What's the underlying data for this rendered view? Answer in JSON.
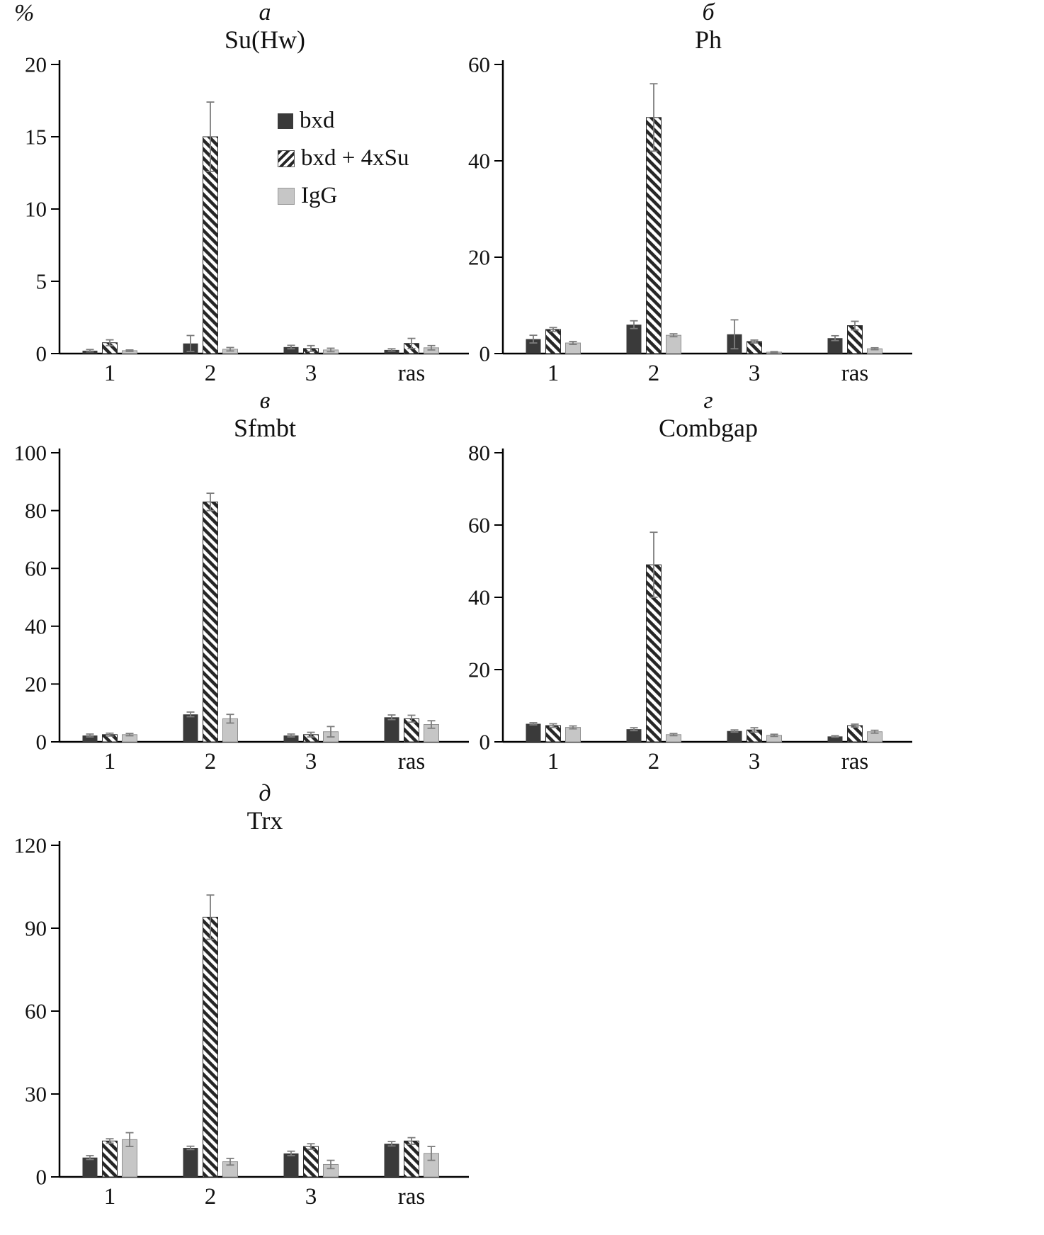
{
  "legend": {
    "items": [
      {
        "label": "bxd",
        "style": "solid-dark"
      },
      {
        "label": "bxd + 4xSu",
        "style": "hatched"
      },
      {
        "label": "IgG",
        "style": "solid-light"
      }
    ]
  },
  "chart_data": [
    {
      "type": "bar",
      "panel_letter": "а",
      "title": "Su(Hw)",
      "ylabel": "%",
      "ylim": [
        0,
        20
      ],
      "yticks": [
        0,
        5,
        10,
        15,
        20
      ],
      "categories": [
        "1",
        "2",
        "3",
        "ras"
      ],
      "grid": false,
      "legend_position": "inside-right",
      "series": [
        {
          "name": "bxd",
          "values": [
            0.2,
            0.7,
            0.45,
            0.25
          ],
          "errors": [
            0.08,
            0.55,
            0.12,
            0.08
          ]
        },
        {
          "name": "bxd + 4xSu",
          "values": [
            0.75,
            15.0,
            0.35,
            0.7
          ],
          "errors": [
            0.2,
            2.4,
            0.2,
            0.35
          ]
        },
        {
          "name": "IgG",
          "values": [
            0.2,
            0.3,
            0.25,
            0.4
          ],
          "errors": [
            0.05,
            0.12,
            0.12,
            0.15
          ]
        }
      ]
    },
    {
      "type": "bar",
      "panel_letter": "б",
      "title": "Ph",
      "ylabel": "",
      "ylim": [
        0,
        60
      ],
      "yticks": [
        0,
        20,
        40,
        60
      ],
      "categories": [
        "1",
        "2",
        "3",
        "ras"
      ],
      "grid": false,
      "series": [
        {
          "name": "bxd",
          "values": [
            3.0,
            6.0,
            4.0,
            3.2
          ],
          "errors": [
            0.8,
            0.8,
            3.0,
            0.5
          ]
        },
        {
          "name": "bxd + 4xSu",
          "values": [
            5.0,
            49.0,
            2.5,
            5.8
          ],
          "errors": [
            0.4,
            7.0,
            0.3,
            0.9
          ]
        },
        {
          "name": "IgG",
          "values": [
            2.2,
            3.8,
            0.3,
            1.0
          ],
          "errors": [
            0.3,
            0.3,
            0.1,
            0.2
          ]
        }
      ]
    },
    {
      "type": "bar",
      "panel_letter": "в",
      "title": "Sfmbt",
      "ylabel": "",
      "ylim": [
        0,
        100
      ],
      "yticks": [
        0,
        20,
        40,
        60,
        80,
        100
      ],
      "categories": [
        "1",
        "2",
        "3",
        "ras"
      ],
      "grid": false,
      "series": [
        {
          "name": "bxd",
          "values": [
            2.2,
            9.5,
            2.2,
            8.5
          ],
          "errors": [
            0.5,
            0.8,
            0.5,
            0.8
          ]
        },
        {
          "name": "bxd + 4xSu",
          "values": [
            2.5,
            83.0,
            2.5,
            8.0
          ],
          "errors": [
            0.5,
            3.0,
            0.8,
            1.2
          ]
        },
        {
          "name": "IgG",
          "values": [
            2.5,
            8.0,
            3.5,
            6.0
          ],
          "errors": [
            0.4,
            1.5,
            1.8,
            1.3
          ]
        }
      ]
    },
    {
      "type": "bar",
      "panel_letter": "г",
      "title": "Combgap",
      "ylabel": "",
      "ylim": [
        0,
        80
      ],
      "yticks": [
        0,
        20,
        40,
        60,
        80
      ],
      "categories": [
        "1",
        "2",
        "3",
        "ras"
      ],
      "grid": false,
      "series": [
        {
          "name": "bxd",
          "values": [
            5.0,
            3.5,
            3.0,
            1.5
          ],
          "errors": [
            0.3,
            0.4,
            0.3,
            0.2
          ]
        },
        {
          "name": "bxd + 4xSu",
          "values": [
            4.5,
            49.0,
            3.3,
            4.5
          ],
          "errors": [
            0.5,
            9.0,
            0.6,
            0.4
          ]
        },
        {
          "name": "IgG",
          "values": [
            4.0,
            2.0,
            1.8,
            2.8
          ],
          "errors": [
            0.4,
            0.3,
            0.3,
            0.4
          ]
        }
      ]
    },
    {
      "type": "bar",
      "panel_letter": "д",
      "title": "Trx",
      "ylabel": "",
      "ylim": [
        0,
        120
      ],
      "yticks": [
        0,
        30,
        60,
        90,
        120
      ],
      "categories": [
        "1",
        "2",
        "3",
        "ras"
      ],
      "grid": false,
      "series": [
        {
          "name": "bxd",
          "values": [
            7.0,
            10.5,
            8.5,
            12.0
          ],
          "errors": [
            0.7,
            0.6,
            0.8,
            0.8
          ]
        },
        {
          "name": "bxd + 4xSu",
          "values": [
            13.0,
            94.0,
            11.0,
            13.0
          ],
          "errors": [
            0.8,
            8.0,
            1.0,
            1.2
          ]
        },
        {
          "name": "IgG",
          "values": [
            13.5,
            5.5,
            4.5,
            8.5
          ],
          "errors": [
            2.5,
            1.2,
            1.5,
            2.5
          ]
        }
      ]
    }
  ]
}
